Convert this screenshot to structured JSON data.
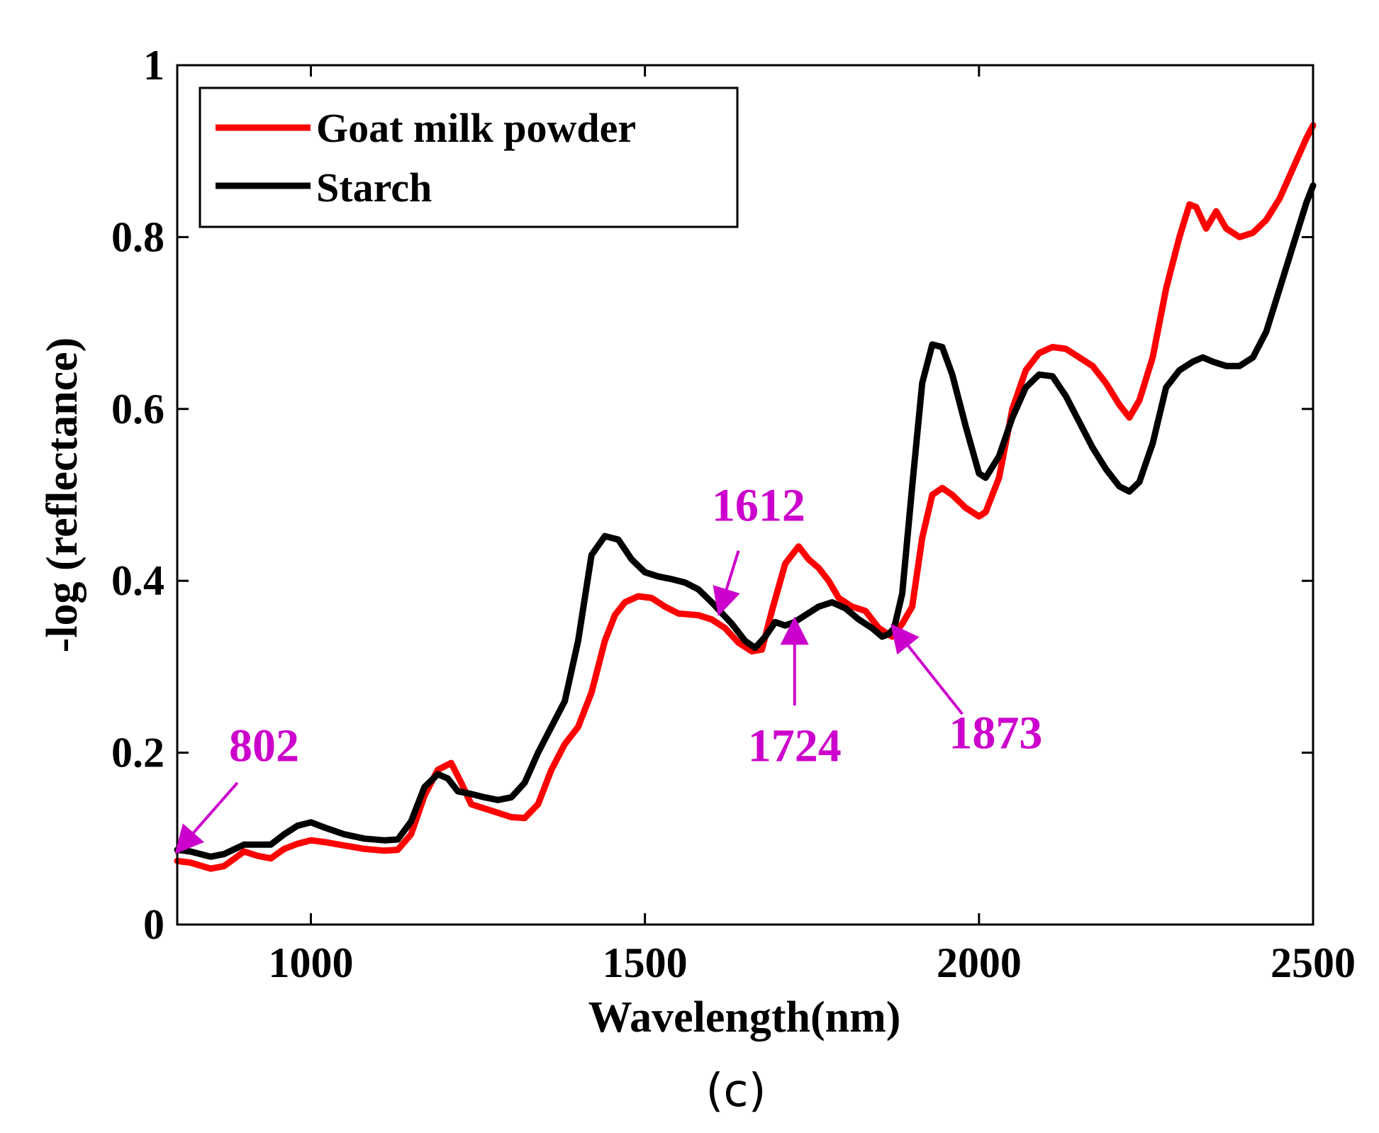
{
  "chart_data": {
    "type": "line",
    "title": "",
    "xlabel": "Wavelength(nm)",
    "ylabel": "-log (reflectance)",
    "panel_label": "(c)",
    "xlim": [
      800,
      2500
    ],
    "ylim": [
      0,
      1
    ],
    "xticks": [
      1000,
      1500,
      2000,
      2500
    ],
    "xtick_labels": [
      "1000",
      "1500",
      "2000",
      "2500"
    ],
    "yticks": [
      0,
      0.2,
      0.4,
      0.6,
      0.8,
      1
    ],
    "ytick_labels": [
      "0",
      "0.2",
      "0.4",
      "0.6",
      "0.8",
      "1"
    ],
    "grid": false,
    "legend_position": "top-left",
    "series": [
      {
        "name": "Goat milk powder",
        "color": "#ff0000",
        "x": [
          800,
          820,
          850,
          870,
          900,
          920,
          940,
          960,
          980,
          1000,
          1020,
          1050,
          1080,
          1110,
          1130,
          1150,
          1170,
          1190,
          1210,
          1225,
          1240,
          1260,
          1280,
          1300,
          1320,
          1340,
          1360,
          1380,
          1400,
          1420,
          1440,
          1455,
          1470,
          1490,
          1510,
          1530,
          1550,
          1580,
          1600,
          1620,
          1640,
          1660,
          1675,
          1690,
          1710,
          1730,
          1745,
          1760,
          1775,
          1790,
          1810,
          1830,
          1850,
          1870,
          1885,
          1900,
          1915,
          1930,
          1945,
          1960,
          1980,
          2000,
          2010,
          2030,
          2050,
          2070,
          2090,
          2110,
          2130,
          2150,
          2170,
          2190,
          2210,
          2225,
          2240,
          2260,
          2280,
          2300,
          2315,
          2325,
          2340,
          2355,
          2370,
          2390,
          2410,
          2430,
          2450,
          2470,
          2490,
          2500
        ],
        "y": [
          0.074,
          0.072,
          0.065,
          0.068,
          0.085,
          0.08,
          0.077,
          0.088,
          0.094,
          0.098,
          0.096,
          0.092,
          0.088,
          0.086,
          0.087,
          0.105,
          0.15,
          0.18,
          0.188,
          0.165,
          0.14,
          0.135,
          0.13,
          0.125,
          0.124,
          0.14,
          0.18,
          0.21,
          0.23,
          0.27,
          0.33,
          0.36,
          0.375,
          0.382,
          0.38,
          0.37,
          0.362,
          0.36,
          0.355,
          0.345,
          0.328,
          0.318,
          0.32,
          0.365,
          0.42,
          0.44,
          0.425,
          0.415,
          0.4,
          0.38,
          0.37,
          0.365,
          0.345,
          0.335,
          0.35,
          0.37,
          0.45,
          0.5,
          0.508,
          0.5,
          0.485,
          0.475,
          0.48,
          0.52,
          0.6,
          0.645,
          0.665,
          0.672,
          0.67,
          0.66,
          0.65,
          0.63,
          0.605,
          0.59,
          0.61,
          0.66,
          0.74,
          0.8,
          0.838,
          0.835,
          0.81,
          0.83,
          0.81,
          0.8,
          0.805,
          0.82,
          0.845,
          0.88,
          0.915,
          0.93
        ]
      },
      {
        "name": "Starch",
        "color": "#000000",
        "x": [
          800,
          820,
          850,
          870,
          900,
          920,
          940,
          960,
          980,
          1000,
          1020,
          1050,
          1080,
          1110,
          1130,
          1150,
          1170,
          1190,
          1205,
          1220,
          1240,
          1260,
          1280,
          1300,
          1320,
          1340,
          1360,
          1380,
          1400,
          1420,
          1440,
          1460,
          1480,
          1500,
          1520,
          1540,
          1560,
          1580,
          1600,
          1612,
          1630,
          1650,
          1665,
          1680,
          1695,
          1710,
          1724,
          1740,
          1760,
          1780,
          1800,
          1820,
          1840,
          1855,
          1865,
          1873,
          1885,
          1900,
          1915,
          1930,
          1945,
          1960,
          1980,
          2000,
          2010,
          2030,
          2050,
          2070,
          2090,
          2110,
          2130,
          2150,
          2170,
          2190,
          2210,
          2225,
          2240,
          2260,
          2280,
          2300,
          2320,
          2335,
          2350,
          2370,
          2390,
          2410,
          2430,
          2450,
          2470,
          2490,
          2500
        ],
        "y": [
          0.087,
          0.085,
          0.079,
          0.082,
          0.093,
          0.093,
          0.093,
          0.105,
          0.115,
          0.119,
          0.113,
          0.105,
          0.1,
          0.098,
          0.099,
          0.12,
          0.16,
          0.175,
          0.17,
          0.155,
          0.152,
          0.148,
          0.145,
          0.148,
          0.165,
          0.2,
          0.23,
          0.26,
          0.33,
          0.43,
          0.452,
          0.448,
          0.425,
          0.41,
          0.405,
          0.402,
          0.398,
          0.39,
          0.375,
          0.365,
          0.35,
          0.33,
          0.322,
          0.335,
          0.352,
          0.348,
          0.352,
          0.36,
          0.37,
          0.375,
          0.368,
          0.355,
          0.345,
          0.335,
          0.338,
          0.345,
          0.385,
          0.51,
          0.63,
          0.675,
          0.672,
          0.64,
          0.58,
          0.525,
          0.52,
          0.545,
          0.59,
          0.625,
          0.64,
          0.638,
          0.615,
          0.585,
          0.555,
          0.53,
          0.51,
          0.504,
          0.515,
          0.56,
          0.625,
          0.645,
          0.655,
          0.66,
          0.655,
          0.65,
          0.65,
          0.66,
          0.69,
          0.74,
          0.79,
          0.84,
          0.86
        ]
      }
    ],
    "annotations": [
      {
        "label": "802",
        "color": "#cc00cc",
        "arrow_from": [
          890,
          0.165
        ],
        "arrow_to": [
          802,
          0.087
        ],
        "text_pos": [
          930,
          0.19
        ]
      },
      {
        "label": "1612",
        "color": "#cc00cc",
        "arrow_from": [
          1640,
          0.435
        ],
        "arrow_to": [
          1612,
          0.365
        ],
        "text_pos": [
          1670,
          0.47
        ]
      },
      {
        "label": "1724",
        "color": "#cc00cc",
        "arrow_from": [
          1724,
          0.255
        ],
        "arrow_to": [
          1724,
          0.352
        ],
        "text_pos": [
          1724,
          0.19
        ]
      },
      {
        "label": "1873",
        "color": "#cc00cc",
        "arrow_from": [
          1975,
          0.245
        ],
        "arrow_to": [
          1873,
          0.345
        ],
        "text_pos": [
          2025,
          0.205
        ]
      }
    ]
  }
}
